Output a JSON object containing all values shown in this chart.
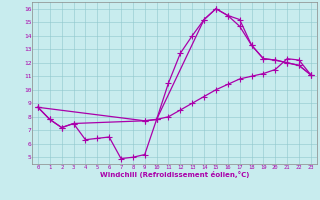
{
  "bg_color": "#c8ecee",
  "line_color": "#aa00aa",
  "xlabel": "Windchill (Refroidissement éolien,°C)",
  "ylim": [
    4.5,
    16.5
  ],
  "xlim": [
    -0.5,
    23.5
  ],
  "yticks": [
    5,
    6,
    7,
    8,
    9,
    10,
    11,
    12,
    13,
    14,
    15,
    16
  ],
  "xticks": [
    0,
    1,
    2,
    3,
    4,
    5,
    6,
    7,
    8,
    9,
    10,
    11,
    12,
    13,
    14,
    15,
    16,
    17,
    18,
    19,
    20,
    21,
    22,
    23
  ],
  "curve1_x": [
    0,
    1,
    2,
    3,
    4,
    5,
    6,
    7,
    8,
    9,
    10,
    11,
    12,
    13,
    14,
    15,
    16,
    17,
    18,
    19,
    20,
    21,
    22,
    23
  ],
  "curve1_y": [
    8.7,
    7.8,
    7.2,
    7.5,
    6.3,
    6.4,
    6.5,
    4.9,
    5.0,
    5.2,
    7.8,
    10.5,
    12.7,
    14.0,
    15.2,
    16.0,
    15.5,
    15.2,
    13.3,
    12.3,
    12.2,
    12.0,
    11.8,
    11.1
  ],
  "curve2_x": [
    0,
    1,
    2,
    3,
    9,
    10,
    11,
    12,
    13,
    14,
    15,
    16,
    17,
    18,
    19,
    20,
    21,
    22,
    23
  ],
  "curve2_y": [
    8.7,
    7.8,
    7.2,
    7.5,
    7.7,
    7.8,
    8.0,
    8.5,
    9.0,
    9.5,
    10.0,
    10.4,
    10.8,
    11.0,
    11.2,
    11.5,
    12.3,
    12.2,
    11.1
  ],
  "curve3_x": [
    0,
    9,
    10,
    14,
    15,
    16,
    17,
    18,
    19,
    20,
    21,
    22,
    23
  ],
  "curve3_y": [
    8.7,
    7.7,
    7.8,
    15.2,
    16.0,
    15.5,
    14.7,
    13.3,
    12.3,
    12.2,
    12.0,
    11.8,
    11.1
  ]
}
